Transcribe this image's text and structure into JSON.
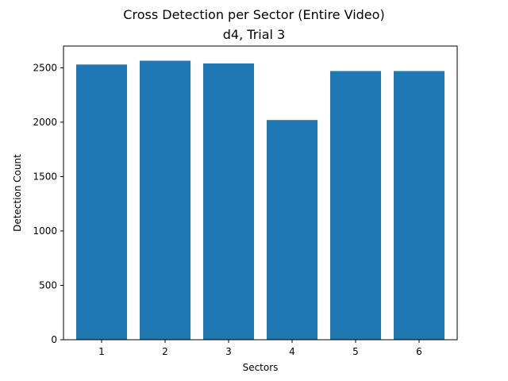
{
  "chart_data": {
    "type": "bar",
    "title": "Cross Detection per Sector (Entire Video)",
    "subtitle": "d4, Trial 3",
    "xlabel": "Sectors",
    "ylabel": "Detection Count",
    "categories": [
      "1",
      "2",
      "3",
      "4",
      "5",
      "6"
    ],
    "values": [
      2530,
      2565,
      2540,
      2020,
      2470,
      2470
    ],
    "ylim": [
      0,
      2700
    ],
    "yticks": [
      0,
      500,
      1000,
      1500,
      2000,
      2500
    ],
    "ytick_labels": [
      "0",
      "500",
      "1000",
      "1500",
      "2000",
      "2500"
    ],
    "grid": false,
    "legend": "none",
    "bar_color": "#1f77b4"
  }
}
